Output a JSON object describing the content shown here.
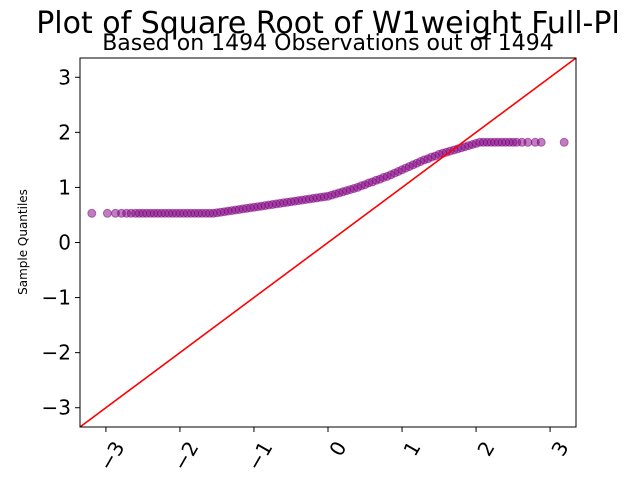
{
  "chart_data": {
    "type": "scatter",
    "title": "Plot of Square Root of W1weight Full-Pl",
    "subtitle": "Based on 1494 Observations out of 1494",
    "xlabel": "",
    "ylabel": "Sample Quantiles",
    "xlim": [
      -3.35,
      3.35
    ],
    "ylim": [
      -3.35,
      3.35
    ],
    "xticks": [
      -3,
      -2,
      -1,
      0,
      1,
      2,
      3
    ],
    "xtick_labels": [
      "−3",
      "−2",
      "−1",
      "0",
      "1",
      "2",
      "3"
    ],
    "yticks": [
      -3,
      -2,
      -1,
      0,
      1,
      2,
      3
    ],
    "ytick_labels": [
      "−3",
      "−2",
      "−1",
      "0",
      "1",
      "2",
      "3"
    ],
    "grid": false,
    "reference_line": {
      "slope": 1,
      "intercept": 0,
      "color": "#ff0000"
    },
    "marker_color": "#800080",
    "line_color": "#ff0000",
    "series": [
      {
        "points": [
          [
            -3.19,
            0.53
          ],
          [
            -2.98,
            0.53
          ],
          [
            -2.87,
            0.53
          ],
          [
            -2.79,
            0.53
          ],
          [
            -2.72,
            0.53
          ],
          [
            -2.66,
            0.53
          ],
          [
            -2.6,
            0.53
          ],
          [
            -2.55,
            0.53
          ],
          [
            -2.5,
            0.53
          ],
          [
            -2.45,
            0.53
          ],
          [
            -2.4,
            0.53
          ],
          [
            -2.35,
            0.53
          ],
          [
            -2.3,
            0.53
          ],
          [
            -2.25,
            0.53
          ],
          [
            -2.2,
            0.53
          ],
          [
            -2.15,
            0.53
          ],
          [
            -2.1,
            0.53
          ],
          [
            -2.05,
            0.53
          ],
          [
            -2.0,
            0.53
          ],
          [
            -1.95,
            0.53
          ],
          [
            -1.9,
            0.53
          ],
          [
            -1.85,
            0.53
          ],
          [
            -1.8,
            0.53
          ],
          [
            -1.75,
            0.53
          ],
          [
            -1.7,
            0.53
          ],
          [
            -1.65,
            0.53
          ],
          [
            -1.6,
            0.53
          ],
          [
            -1.55,
            0.53
          ],
          [
            -1.5,
            0.54
          ],
          [
            -1.45,
            0.55
          ],
          [
            -1.4,
            0.56
          ],
          [
            -1.35,
            0.57
          ],
          [
            -1.3,
            0.58
          ],
          [
            -1.25,
            0.59
          ],
          [
            -1.2,
            0.6
          ],
          [
            -1.15,
            0.61
          ],
          [
            -1.1,
            0.62
          ],
          [
            -1.05,
            0.63
          ],
          [
            -1.0,
            0.64
          ],
          [
            -0.95,
            0.65
          ],
          [
            -0.9,
            0.66
          ],
          [
            -0.85,
            0.67
          ],
          [
            -0.8,
            0.68
          ],
          [
            -0.75,
            0.69
          ],
          [
            -0.7,
            0.7
          ],
          [
            -0.65,
            0.71
          ],
          [
            -0.6,
            0.72
          ],
          [
            -0.55,
            0.73
          ],
          [
            -0.5,
            0.74
          ],
          [
            -0.45,
            0.75
          ],
          [
            -0.4,
            0.76
          ],
          [
            -0.35,
            0.77
          ],
          [
            -0.3,
            0.78
          ],
          [
            -0.25,
            0.79
          ],
          [
            -0.2,
            0.8
          ],
          [
            -0.15,
            0.81
          ],
          [
            -0.1,
            0.82
          ],
          [
            -0.05,
            0.83
          ],
          [
            0.0,
            0.84
          ],
          [
            0.05,
            0.86
          ],
          [
            0.1,
            0.88
          ],
          [
            0.15,
            0.9
          ],
          [
            0.2,
            0.92
          ],
          [
            0.25,
            0.94
          ],
          [
            0.3,
            0.96
          ],
          [
            0.35,
            0.98
          ],
          [
            0.4,
            1.0
          ],
          [
            0.45,
            1.03
          ],
          [
            0.5,
            1.05
          ],
          [
            0.55,
            1.08
          ],
          [
            0.6,
            1.1
          ],
          [
            0.65,
            1.13
          ],
          [
            0.7,
            1.15
          ],
          [
            0.75,
            1.18
          ],
          [
            0.8,
            1.2
          ],
          [
            0.85,
            1.23
          ],
          [
            0.9,
            1.26
          ],
          [
            0.95,
            1.29
          ],
          [
            1.0,
            1.32
          ],
          [
            1.05,
            1.35
          ],
          [
            1.1,
            1.38
          ],
          [
            1.15,
            1.41
          ],
          [
            1.2,
            1.44
          ],
          [
            1.25,
            1.47
          ],
          [
            1.3,
            1.5
          ],
          [
            1.35,
            1.52
          ],
          [
            1.4,
            1.55
          ],
          [
            1.45,
            1.57
          ],
          [
            1.5,
            1.6
          ],
          [
            1.55,
            1.62
          ],
          [
            1.6,
            1.64
          ],
          [
            1.65,
            1.66
          ],
          [
            1.7,
            1.68
          ],
          [
            1.75,
            1.7
          ],
          [
            1.8,
            1.72
          ],
          [
            1.85,
            1.74
          ],
          [
            1.9,
            1.76
          ],
          [
            1.95,
            1.78
          ],
          [
            2.0,
            1.8
          ],
          [
            2.05,
            1.82
          ],
          [
            2.1,
            1.82
          ],
          [
            2.15,
            1.82
          ],
          [
            2.2,
            1.82
          ],
          [
            2.25,
            1.82
          ],
          [
            2.3,
            1.82
          ],
          [
            2.35,
            1.82
          ],
          [
            2.4,
            1.82
          ],
          [
            2.45,
            1.82
          ],
          [
            2.5,
            1.82
          ],
          [
            2.55,
            1.82
          ],
          [
            2.62,
            1.82
          ],
          [
            2.7,
            1.82
          ],
          [
            2.8,
            1.82
          ],
          [
            2.88,
            1.82
          ],
          [
            3.19,
            1.82
          ]
        ]
      }
    ]
  }
}
